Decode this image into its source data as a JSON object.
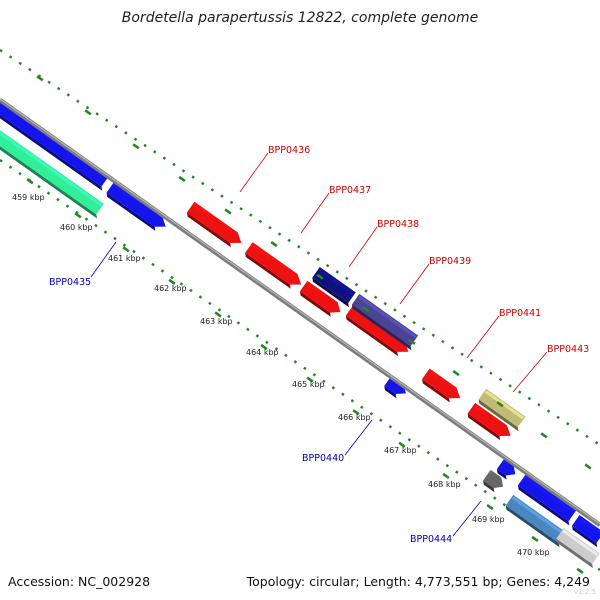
{
  "header": {
    "title": "Bordetella parapertussis 12822, complete genome"
  },
  "footer": {
    "accession": "Accession: NC_002928",
    "summary": "Topology: circular; Length: 4,773,551 bp; Genes: 4,249",
    "corner_mark": "v1.2.5"
  },
  "colors": {
    "backbone": "#8a8a8a",
    "tick": "#1f8a1f",
    "forward_label": "#cc0000",
    "reverse_label": "#0000aa"
  },
  "ticks": [
    "459 kbp",
    "460 kbp",
    "461 kbp",
    "462 kbp",
    "463 kbp",
    "464 kbp",
    "465 kbp",
    "466 kbp",
    "467 kbp",
    "468 kbp",
    "469 kbp",
    "470 kbp"
  ],
  "forward_labels": [
    "BPP0436",
    "BPP0437",
    "BPP0438",
    "BPP0439",
    "BPP0441",
    "BPP0443"
  ],
  "reverse_labels": [
    "BPP0435",
    "BPP0440",
    "BPP0444"
  ]
}
